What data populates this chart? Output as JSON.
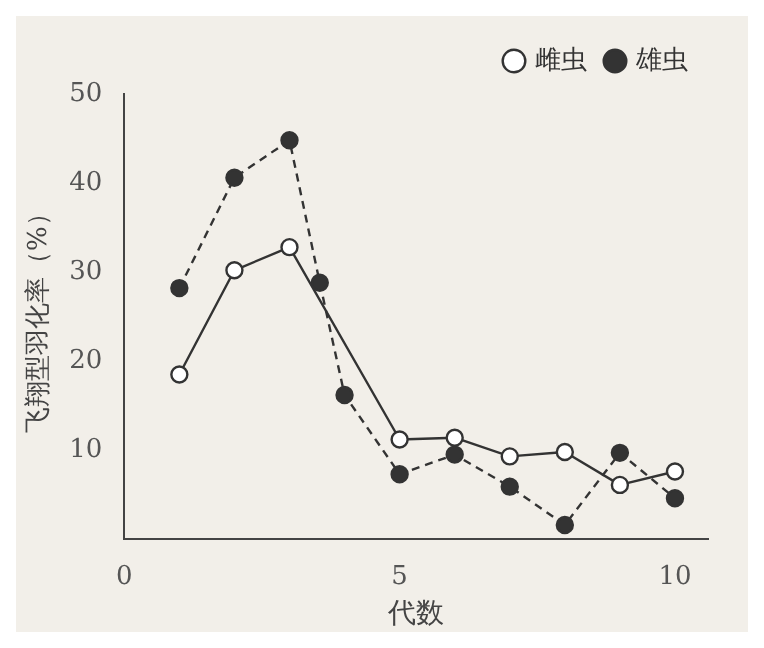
{
  "chart_data": {
    "type": "line",
    "xlabel": "代数",
    "ylabel": "飞翔型羽化率（%）",
    "xlim": [
      0,
      10.6
    ],
    "xticks": [
      0,
      5,
      10
    ],
    "ylim": [
      0,
      50
    ],
    "yticks": [
      10,
      20,
      30,
      40,
      50
    ],
    "grid": false,
    "legend": "top right",
    "marker": "circle",
    "series": [
      {
        "name": "雌虫",
        "color": "#333333",
        "line_style": "solid",
        "x": [
          1,
          2,
          3,
          5,
          6,
          7,
          8,
          9,
          10
        ],
        "values": [
          18.5,
          30.2,
          32.8,
          11.2,
          11.4,
          9.3,
          9.8,
          6.1,
          7.6
        ]
      },
      {
        "name": "雄虫",
        "color": "#333333",
        "line_style": "dashed",
        "x": [
          1,
          2,
          3,
          3.55,
          4,
          5,
          6,
          7,
          8,
          9,
          10
        ],
        "values": [
          28.2,
          40.6,
          44.8,
          28.8,
          16.2,
          7.3,
          9.5,
          5.9,
          1.6,
          9.7,
          4.6
        ]
      }
    ]
  }
}
